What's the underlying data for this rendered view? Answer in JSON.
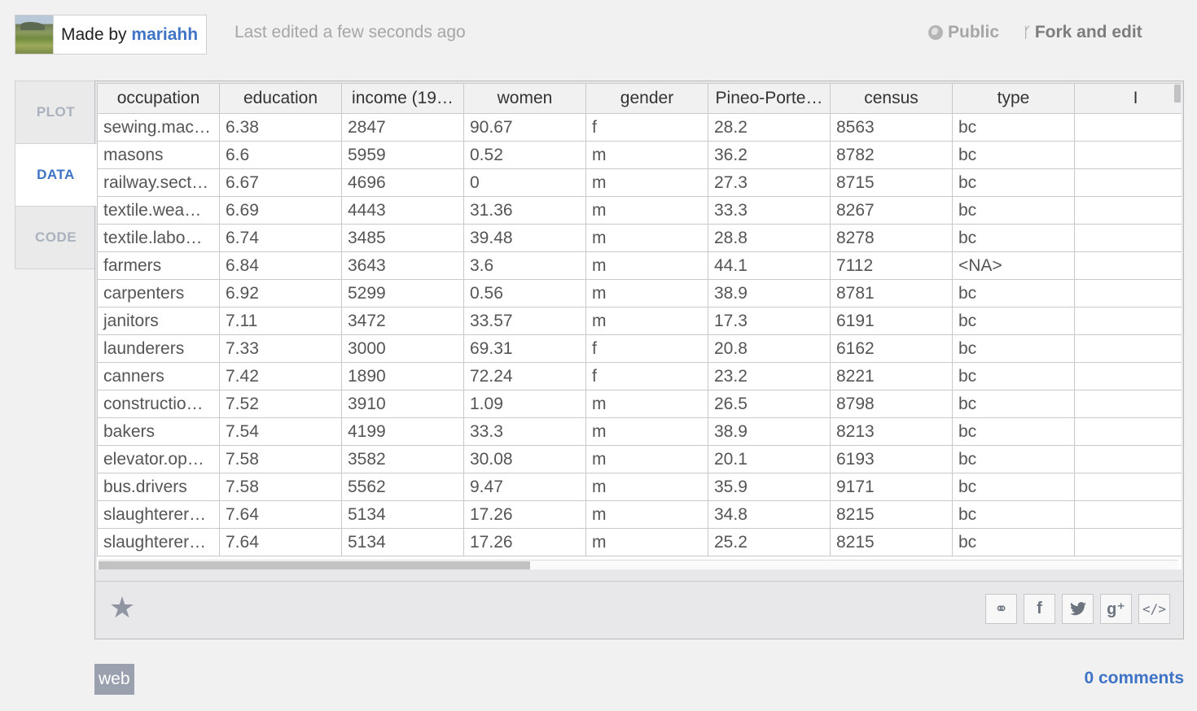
{
  "header": {
    "made_by_prefix": "Made by",
    "author": "mariahh",
    "last_edited": "Last edited a few seconds ago",
    "visibility": "Public",
    "fork_label": "Fork and edit"
  },
  "tabs": [
    {
      "label": "PLOT",
      "active": false
    },
    {
      "label": "DATA",
      "active": true
    },
    {
      "label": "CODE",
      "active": false
    }
  ],
  "grid": {
    "columns": [
      "occupation",
      "education",
      "income (19…",
      "women",
      "gender",
      "Pineo-Porte…",
      "census",
      "type",
      "I"
    ],
    "rows": [
      [
        "sewing.mac…",
        "6.38",
        "2847",
        "90.67",
        "f",
        "28.2",
        "8563",
        "bc",
        ""
      ],
      [
        "masons",
        "6.6",
        "5959",
        "0.52",
        "m",
        "36.2",
        "8782",
        "bc",
        ""
      ],
      [
        "railway.sect…",
        "6.67",
        "4696",
        "0",
        "m",
        "27.3",
        "8715",
        "bc",
        ""
      ],
      [
        "textile.wea…",
        "6.69",
        "4443",
        "31.36",
        "m",
        "33.3",
        "8267",
        "bc",
        ""
      ],
      [
        "textile.labo…",
        "6.74",
        "3485",
        "39.48",
        "m",
        "28.8",
        "8278",
        "bc",
        ""
      ],
      [
        "farmers",
        "6.84",
        "3643",
        "3.6",
        "m",
        "44.1",
        "7112",
        "<NA>",
        ""
      ],
      [
        "carpenters",
        "6.92",
        "5299",
        "0.56",
        "m",
        "38.9",
        "8781",
        "bc",
        ""
      ],
      [
        "janitors",
        "7.11",
        "3472",
        "33.57",
        "m",
        "17.3",
        "6191",
        "bc",
        ""
      ],
      [
        "launderers",
        "7.33",
        "3000",
        "69.31",
        "f",
        "20.8",
        "6162",
        "bc",
        ""
      ],
      [
        "canners",
        "7.42",
        "1890",
        "72.24",
        "f",
        "23.2",
        "8221",
        "bc",
        ""
      ],
      [
        "constructio…",
        "7.52",
        "3910",
        "1.09",
        "m",
        "26.5",
        "8798",
        "bc",
        ""
      ],
      [
        "bakers",
        "7.54",
        "4199",
        "33.3",
        "m",
        "38.9",
        "8213",
        "bc",
        ""
      ],
      [
        "elevator.op…",
        "7.58",
        "3582",
        "30.08",
        "m",
        "20.1",
        "6193",
        "bc",
        ""
      ],
      [
        "bus.drivers",
        "7.58",
        "5562",
        "9.47",
        "m",
        "35.9",
        "9171",
        "bc",
        ""
      ],
      [
        "slaughterer…",
        "7.64",
        "5134",
        "17.26",
        "m",
        "34.8",
        "8215",
        "bc",
        ""
      ],
      [
        "slaughterer…",
        "7.64",
        "5134",
        "17.26",
        "m",
        "25.2",
        "8215",
        "bc",
        ""
      ]
    ]
  },
  "toolbar": {
    "star_icon": "star-icon",
    "share_icons": [
      "link-icon",
      "facebook-icon",
      "twitter-icon",
      "google-plus-icon",
      "embed-code-icon"
    ],
    "share_glyphs": [
      "⚭",
      "f",
      "🐦",
      "g⁺",
      "</>"
    ]
  },
  "footer": {
    "tag": "web",
    "comments": "0 comments"
  },
  "colors": {
    "accent": "#3e73c6",
    "background": "#f1f1f1",
    "tag_bg": "#9aa0ae"
  }
}
